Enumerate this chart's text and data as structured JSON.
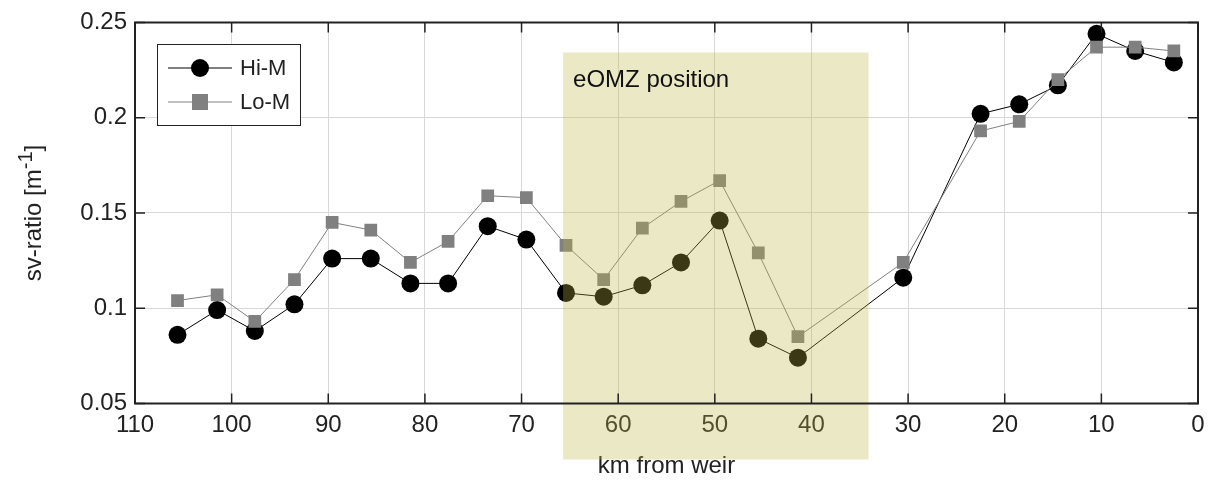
{
  "chart_data": {
    "type": "line",
    "xlabel": "km from weir",
    "ylabel": "sv-ratio [m$^{-1}$]",
    "xlim": [
      110,
      0
    ],
    "xticks": [
      110,
      100,
      90,
      80,
      70,
      60,
      50,
      40,
      30,
      20,
      10,
      0
    ],
    "ylim": [
      0.05,
      0.25
    ],
    "yticks": [
      0.05,
      0.1,
      0.15,
      0.2,
      0.25
    ],
    "x": [
      105.6,
      101.5,
      97.6,
      93.5,
      89.6,
      85.6,
      81.5,
      77.6,
      73.5,
      69.5,
      65.4,
      61.5,
      57.5,
      53.5,
      49.5,
      45.5,
      41.4,
      30.5,
      22.5,
      18.5,
      14.5,
      10.5,
      6.5,
      2.5
    ],
    "series": [
      {
        "name": "Hi-M",
        "color": "#000000",
        "marker": "circle",
        "values": [
          0.086,
          0.099,
          0.088,
          0.102,
          0.126,
          0.126,
          0.113,
          0.113,
          0.143,
          0.136,
          0.108,
          0.106,
          0.112,
          0.124,
          0.146,
          0.084,
          0.074,
          0.116,
          0.202,
          0.207,
          0.217,
          0.244,
          0.235,
          0.229
        ]
      },
      {
        "name": "Lo-M",
        "color": "#808080",
        "marker": "square",
        "values": [
          0.104,
          0.107,
          0.093,
          0.115,
          0.145,
          0.141,
          0.124,
          0.135,
          0.159,
          0.158,
          0.133,
          0.115,
          0.142,
          0.156,
          0.167,
          0.129,
          0.085,
          0.124,
          0.193,
          0.198,
          0.22,
          0.237,
          0.237,
          0.235
        ]
      }
    ],
    "bands": [
      {
        "axis": "x",
        "from": 65.7,
        "to": 34.1,
        "label": "eOMZ position",
        "color": "#beb547"
      }
    ],
    "grid": true,
    "legend": "top left",
    "line_style": "solid"
  }
}
